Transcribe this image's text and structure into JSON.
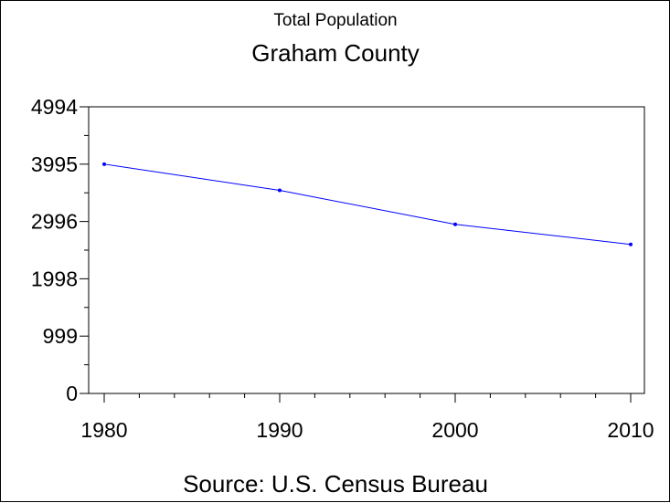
{
  "chart_data": {
    "type": "line",
    "subtitle": "Total Population",
    "title": "Graham County",
    "source": "Source: U.S. Census Bureau",
    "xlabel": "",
    "ylabel": "",
    "x": [
      1980,
      1990,
      2000,
      2010
    ],
    "x_tick_labels": [
      "1980",
      "1990",
      "2000",
      "2010"
    ],
    "xlim": [
      1980,
      2010
    ],
    "y_ticks": [
      0,
      999,
      1998,
      2996,
      3995,
      4994
    ],
    "y_tick_labels": [
      "0",
      "999",
      "1998",
      "2996",
      "3995",
      "4994"
    ],
    "ylim": [
      0,
      4994
    ],
    "grid": false,
    "legend": "none",
    "series": [
      {
        "values": [
          3995,
          3539,
          2946,
          2597
        ],
        "color": "#0000ff"
      }
    ]
  }
}
